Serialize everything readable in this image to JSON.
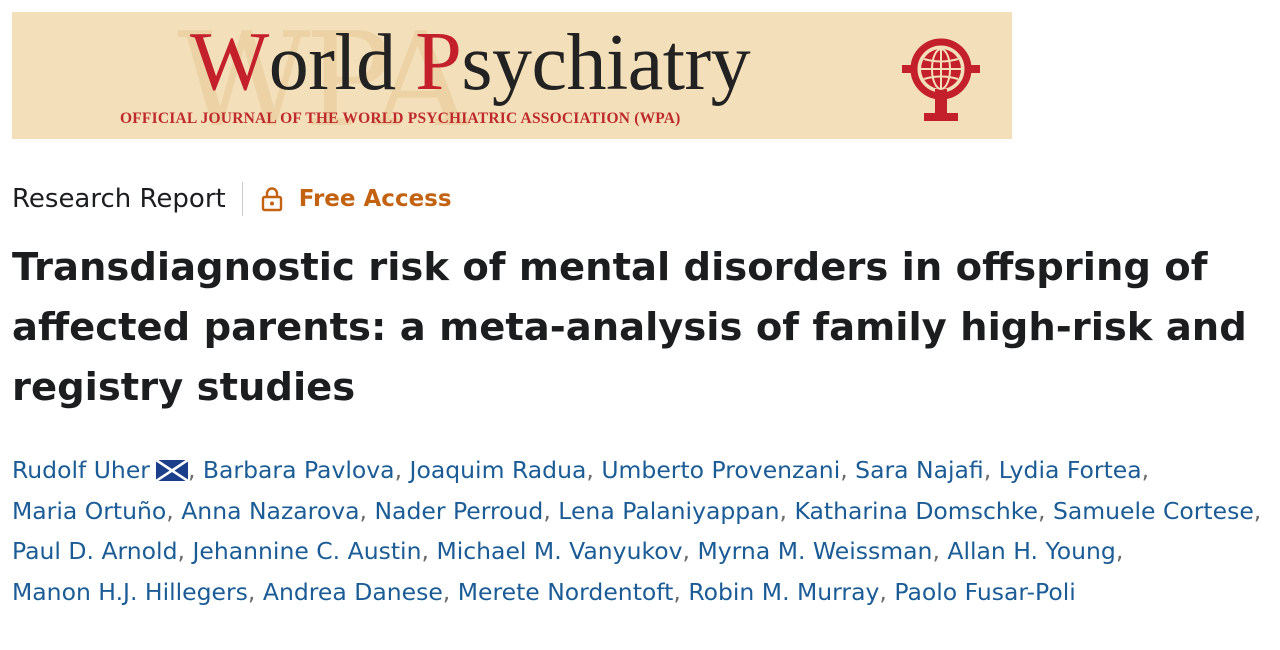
{
  "banner": {
    "title_cap_1": "W",
    "title_rest_1": "orld ",
    "title_cap_2": "P",
    "title_rest_2": "sychiatry",
    "subtitle": "OFFICIAL JOURNAL OF THE WORLD PSYCHIATRIC ASSOCIATION (WPA)",
    "watermark": "WPA",
    "logo_icon": "wpa-globe-logo",
    "colors": {
      "background": "#f3dfb9",
      "accent": "#c4202c"
    }
  },
  "meta": {
    "article_type": "Research Report",
    "access_icon": "lock-icon",
    "access_label": "Free Access",
    "access_color": "#c36312"
  },
  "article": {
    "title": "Transdiagnostic risk of mental disorders in offspring of affected parents: a meta-analysis of family high-risk and registry studies"
  },
  "authors": {
    "separator": ", ",
    "link_color": "#1b5c96",
    "corresponding_icon": "mail-icon",
    "list": [
      "Rudolf Uher",
      "Barbara Pavlova",
      "Joaquim Radua",
      "Umberto Provenzani",
      "Sara Najafi",
      "Lydia Fortea",
      "Maria Ortuño",
      "Anna Nazarova",
      "Nader Perroud",
      "Lena Palaniyappan",
      "Katharina Domschke",
      "Samuele Cortese",
      "Paul D. Arnold",
      "Jehannine C. Austin",
      "Michael M. Vanyukov",
      "Myrna M. Weissman",
      "Allan H. Young",
      "Manon H.J. Hillegers",
      "Andrea Danese",
      "Merete Nordentoft",
      "Robin M. Murray",
      "Paolo Fusar-Poli"
    ]
  }
}
